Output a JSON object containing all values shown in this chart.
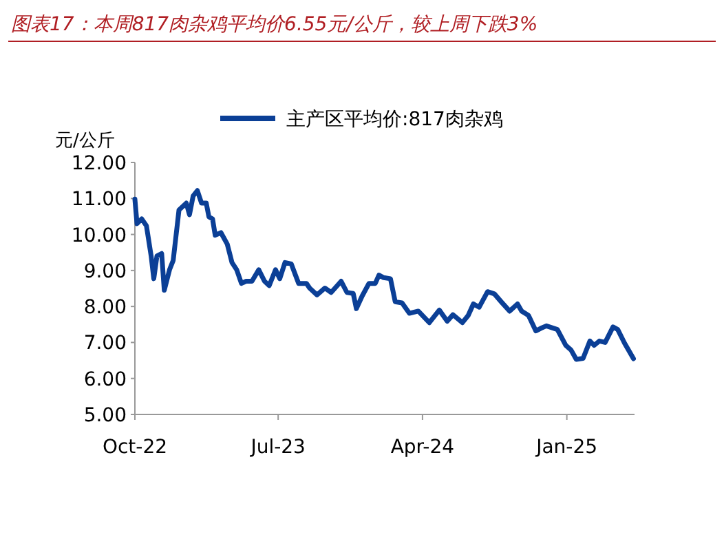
{
  "chart_data": {
    "type": "line",
    "title": "图表17：本周817肉杂鸡平均价6.55元/公斤，较上周下跌3%",
    "ylabel": "元/公斤",
    "legend": "top",
    "marker": "none",
    "line_style": "solid",
    "grid": false,
    "xlim": [
      "2022-10-01",
      "2025-05-10"
    ],
    "xticks": [
      {
        "value": "2022-10-01",
        "label": "Oct-22"
      },
      {
        "value": "2023-07-01",
        "label": "Jul-23"
      },
      {
        "value": "2024-04-01",
        "label": "Apr-24"
      },
      {
        "value": "2025-01-01",
        "label": "Jan-25"
      }
    ],
    "ylim": [
      5,
      12
    ],
    "yticks": [
      {
        "value": 5,
        "label": "5.00"
      },
      {
        "value": 6,
        "label": "6.00"
      },
      {
        "value": 7,
        "label": "7.00"
      },
      {
        "value": 8,
        "label": "8.00"
      },
      {
        "value": 9,
        "label": "9.00"
      },
      {
        "value": 10,
        "label": "10.00"
      },
      {
        "value": 11,
        "label": "11.00"
      },
      {
        "value": 12,
        "label": "12.00"
      }
    ],
    "x": [
      "2022-10-01",
      "2022-10-05",
      "2022-10-14",
      "2022-10-23",
      "2022-11-01",
      "2022-11-06",
      "2022-11-12",
      "2022-11-21",
      "2022-11-26",
      "2022-12-06",
      "2022-12-13",
      "2022-12-24",
      "2023-01-07",
      "2023-01-13",
      "2023-01-20",
      "2023-01-28",
      "2023-02-05",
      "2023-02-14",
      "2023-02-19",
      "2023-02-26",
      "2023-03-03",
      "2023-03-14",
      "2023-03-26",
      "2023-04-04",
      "2023-04-13",
      "2023-04-22",
      "2023-05-01",
      "2023-05-12",
      "2023-05-25",
      "2023-06-05",
      "2023-06-14",
      "2023-06-26",
      "2023-07-04",
      "2023-07-14",
      "2023-07-26",
      "2023-08-09",
      "2023-08-24",
      "2023-08-30",
      "2023-09-13",
      "2023-09-28",
      "2023-10-10",
      "2023-10-29",
      "2023-11-09",
      "2023-11-21",
      "2023-11-27",
      "2023-12-08",
      "2023-12-21",
      "2024-01-02",
      "2024-01-09",
      "2024-01-18",
      "2024-01-31",
      "2024-02-09",
      "2024-02-22",
      "2024-03-07",
      "2024-03-24",
      "2024-04-14",
      "2024-05-03",
      "2024-05-18",
      "2024-05-29",
      "2024-06-16",
      "2024-06-27",
      "2024-07-07",
      "2024-07-18",
      "2024-08-03",
      "2024-08-16",
      "2024-08-29",
      "2024-09-14",
      "2024-09-29",
      "2024-10-07",
      "2024-10-20",
      "2024-11-03",
      "2024-11-12",
      "2024-11-23",
      "2024-12-14",
      "2024-12-30",
      "2025-01-09",
      "2025-01-19",
      "2025-02-01",
      "2025-02-14",
      "2025-02-22",
      "2025-03-04",
      "2025-03-15",
      "2025-03-30",
      "2025-04-08",
      "2025-04-21",
      "2025-05-08"
    ],
    "series": [
      {
        "name": "主产区平均价:817肉杂鸡",
        "color": "#0b3f96",
        "values": [
          10.98,
          10.3,
          10.43,
          10.24,
          9.4,
          8.77,
          9.4,
          9.47,
          8.45,
          9.02,
          9.28,
          10.68,
          10.87,
          10.55,
          11.07,
          11.22,
          10.87,
          10.87,
          10.49,
          10.43,
          9.98,
          10.05,
          9.73,
          9.22,
          9.02,
          8.64,
          8.7,
          8.7,
          9.02,
          8.7,
          8.58,
          9.02,
          8.77,
          9.22,
          9.18,
          8.64,
          8.64,
          8.51,
          8.32,
          8.51,
          8.39,
          8.7,
          8.39,
          8.36,
          7.94,
          8.29,
          8.64,
          8.64,
          8.87,
          8.8,
          8.77,
          8.13,
          8.1,
          7.81,
          7.87,
          7.55,
          7.9,
          7.59,
          7.77,
          7.55,
          7.75,
          8.07,
          7.98,
          8.41,
          8.35,
          8.13,
          7.87,
          8.07,
          7.87,
          7.75,
          7.32,
          7.39,
          7.46,
          7.36,
          6.92,
          6.79,
          6.53,
          6.56,
          7.04,
          6.92,
          7.04,
          7.0,
          7.43,
          7.36,
          6.98,
          6.55
        ]
      }
    ]
  }
}
